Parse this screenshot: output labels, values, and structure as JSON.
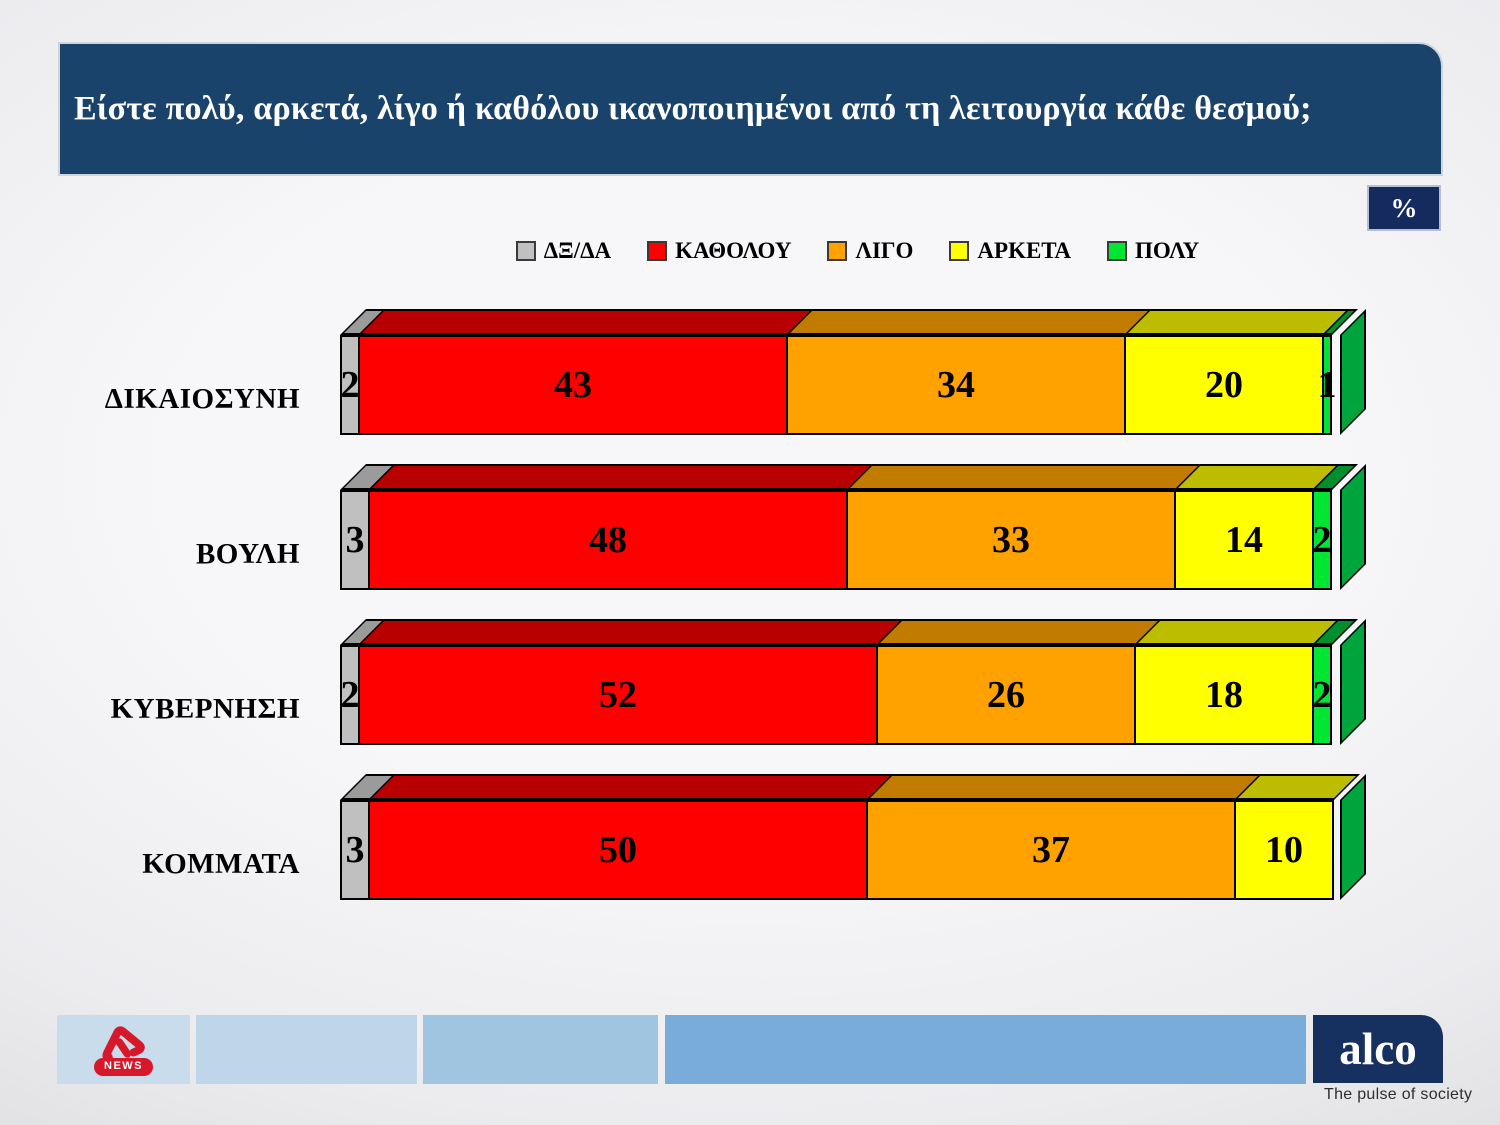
{
  "header": {
    "title": "Είστε πολύ, αρκετά, λίγο ή καθόλου ικανοποιημένοι από τη λειτουργία κάθε θεσμού;",
    "background": "#1a436b"
  },
  "unit_badge": "%",
  "chart_data": {
    "type": "bar",
    "stacked": true,
    "orientation": "horizontal",
    "unit": "%",
    "xlim": [
      0,
      100
    ],
    "legend_position": "top",
    "value_labels": "inside",
    "hide_zero_labels": true,
    "categories": [
      "ΔΙΚΑΙΟΣΥΝΗ",
      "ΒΟΥΛΗ",
      "ΚΥΒΕΡΝΗΣΗ",
      "ΚΟΜΜΑΤΑ"
    ],
    "series": [
      {
        "name": "ΔΞ/ΔΑ",
        "color": "#c0c0c0",
        "top_color": "#9b9b9b",
        "values": [
          2,
          3,
          2,
          3
        ]
      },
      {
        "name": "ΚΑΘΟΛΟΥ",
        "color": "#fe0000",
        "top_color": "#b90000",
        "values": [
          43,
          48,
          52,
          50
        ]
      },
      {
        "name": "ΛΙΓΟ",
        "color": "#ffa200",
        "top_color": "#c17c00",
        "values": [
          34,
          33,
          26,
          37
        ]
      },
      {
        "name": "ΑΡΚΕΤΑ",
        "color": "#ffff00",
        "top_color": "#bdbd00",
        "values": [
          20,
          14,
          18,
          10
        ]
      },
      {
        "name": "ΠΟΛΥ",
        "color": "#00e632",
        "top_color": "#008f2f",
        "side_color": "#00a43c",
        "values": [
          1,
          2,
          2,
          0
        ]
      }
    ]
  },
  "footer": {
    "blocks": [
      {
        "color": "#c9dcec"
      },
      {
        "color": "#bdd6ea"
      },
      {
        "color": "#9fc5e1"
      },
      {
        "color": "#79acd8"
      }
    ],
    "alpha_news": {
      "pill_label": "NEWS",
      "logo_color": "#d7182a"
    },
    "alco": {
      "wordmark": "alco",
      "tagline": "The pulse of society",
      "background": "#16305f"
    }
  }
}
